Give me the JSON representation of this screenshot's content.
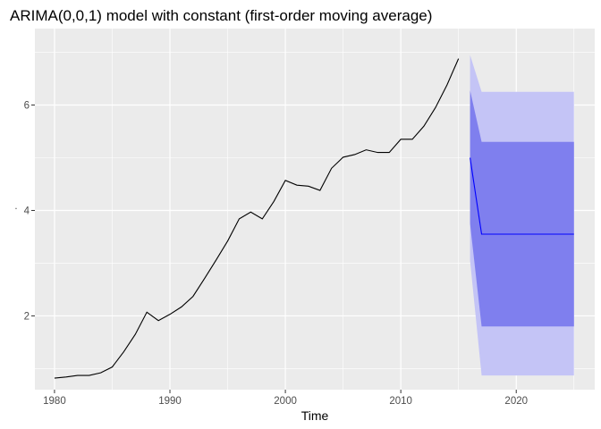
{
  "chart_data": {
    "type": "line",
    "title": "ARIMA(0,0,1) model with constant (first-order moving average)",
    "xlabel": "Time",
    "ylabel": ".",
    "xlim": [
      1978.3,
      2026.8
    ],
    "ylim": [
      0.6,
      7.45
    ],
    "x_ticks": [
      1980,
      1990,
      2000,
      2010,
      2020
    ],
    "y_ticks": [
      2,
      4,
      6
    ],
    "grid": true,
    "legend": "none",
    "colors": {
      "panel": "#ebebeb",
      "grid": "#ffffff",
      "history_line": "#000000",
      "forecast_line": "#0000ff",
      "band_95": "#c4c4f6",
      "band_80": "#7f7fee"
    },
    "history": {
      "x": [
        1980,
        1981,
        1982,
        1983,
        1984,
        1985,
        1986,
        1987,
        1988,
        1989,
        1990,
        1991,
        1992,
        1993,
        1994,
        1995,
        1996,
        1997,
        1998,
        1999,
        2000,
        2001,
        2002,
        2003,
        2004,
        2005,
        2006,
        2007,
        2008,
        2009,
        2010,
        2011,
        2012,
        2013,
        2014,
        2015
      ],
      "y": [
        0.82,
        0.84,
        0.87,
        0.87,
        0.92,
        1.03,
        1.32,
        1.65,
        2.07,
        1.91,
        2.03,
        2.17,
        2.37,
        2.71,
        3.06,
        3.42,
        3.84,
        3.97,
        3.84,
        4.17,
        4.57,
        4.48,
        4.46,
        4.38,
        4.8,
        5.01,
        5.06,
        5.15,
        5.1,
        5.1,
        5.35,
        5.35,
        5.6,
        5.95,
        6.38,
        6.88
      ]
    },
    "forecast": {
      "x": [
        2016,
        2017,
        2018,
        2019,
        2020,
        2021,
        2022,
        2023,
        2024,
        2025
      ],
      "mean": [
        5.0,
        3.55,
        3.55,
        3.55,
        3.55,
        3.55,
        3.55,
        3.55,
        3.55,
        3.55
      ],
      "lo80": [
        3.75,
        1.8,
        1.8,
        1.8,
        1.8,
        1.8,
        1.8,
        1.8,
        1.8,
        1.8
      ],
      "hi80": [
        6.28,
        5.3,
        5.3,
        5.3,
        5.3,
        5.3,
        5.3,
        5.3,
        5.3,
        5.3
      ],
      "lo95": [
        3.05,
        0.87,
        0.87,
        0.87,
        0.87,
        0.87,
        0.87,
        0.87,
        0.87,
        0.87
      ],
      "hi95": [
        6.95,
        6.25,
        6.25,
        6.25,
        6.25,
        6.25,
        6.25,
        6.25,
        6.25,
        6.25
      ]
    }
  }
}
